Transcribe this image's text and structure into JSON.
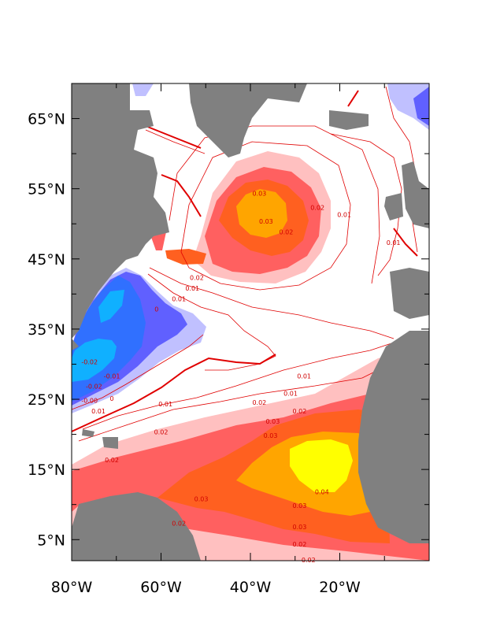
{
  "map": {
    "region": "North Atlantic",
    "lat_axis": {
      "range_deg": [
        2,
        70
      ],
      "ticks": [
        {
          "value": 5,
          "label": "5°N"
        },
        {
          "value": 15,
          "label": "15°N"
        },
        {
          "value": 25,
          "label": "25°N"
        },
        {
          "value": 35,
          "label": "35°N"
        },
        {
          "value": 45,
          "label": "45°N"
        },
        {
          "value": 55,
          "label": "55°N"
        },
        {
          "value": 65,
          "label": "65°N"
        }
      ]
    },
    "lon_axis": {
      "range_deg": [
        -80,
        0
      ],
      "ticks": [
        {
          "value": -80,
          "label": "80°W"
        },
        {
          "value": -60,
          "label": "60°W"
        },
        {
          "value": -40,
          "label": "40°W"
        },
        {
          "value": -20,
          "label": "20°W"
        }
      ]
    },
    "colors": {
      "land": "#808080",
      "ocean": "#ffffff",
      "pos_001": "#ffc0c0",
      "pos_002": "#ff6060",
      "pos_003": "#ff6020",
      "pos_004": "#ffa500",
      "pos_005": "#ffff00",
      "neg_001": "#c0c0ff",
      "neg_002": "#6060ff",
      "neg_003": "#3070ff",
      "neg_004": "#10b0ff",
      "contour_line": "#e00000"
    },
    "contour_labels": [
      {
        "text": "0.03",
        "lon": -38,
        "lat": 54
      },
      {
        "text": "0.03",
        "lon": -36.5,
        "lat": 50
      },
      {
        "text": "0.02",
        "lon": -32,
        "lat": 48.5
      },
      {
        "text": "0.02",
        "lon": -25,
        "lat": 52
      },
      {
        "text": "0.01",
        "lon": -19,
        "lat": 51
      },
      {
        "text": "0.01",
        "lon": -8,
        "lat": 47
      },
      {
        "text": "0.02",
        "lon": -52,
        "lat": 42
      },
      {
        "text": "0.01",
        "lon": -53,
        "lat": 40.5
      },
      {
        "text": "0.01",
        "lon": -56,
        "lat": 39
      },
      {
        "text": "0",
        "lon": -61,
        "lat": 37.5
      },
      {
        "text": "-0.02",
        "lon": -76,
        "lat": 30
      },
      {
        "text": "-0.02",
        "lon": -75,
        "lat": 26.5
      },
      {
        "text": "-0.01",
        "lon": -71,
        "lat": 28
      },
      {
        "text": "-0.00",
        "lon": -76,
        "lat": 24.5
      },
      {
        "text": "0",
        "lon": -71,
        "lat": 24.8
      },
      {
        "text": "0.01",
        "lon": -74,
        "lat": 23
      },
      {
        "text": "0.01",
        "lon": -59,
        "lat": 24
      },
      {
        "text": "0.01",
        "lon": -28,
        "lat": 28
      },
      {
        "text": "0.01",
        "lon": -31,
        "lat": 25.5
      },
      {
        "text": "0.02",
        "lon": -38,
        "lat": 24.2
      },
      {
        "text": "0.02",
        "lon": -29,
        "lat": 23
      },
      {
        "text": "0.03",
        "lon": -35,
        "lat": 21.5
      },
      {
        "text": "0.03",
        "lon": -35.5,
        "lat": 19.5
      },
      {
        "text": "0.02",
        "lon": -60,
        "lat": 20
      },
      {
        "text": "0.02",
        "lon": -71,
        "lat": 16
      },
      {
        "text": "0.03",
        "lon": -51,
        "lat": 10.5
      },
      {
        "text": "0.02",
        "lon": -56,
        "lat": 7
      },
      {
        "text": "0.03",
        "lon": -29,
        "lat": 9.5
      },
      {
        "text": "0.03",
        "lon": -29,
        "lat": 6.5
      },
      {
        "text": "0.04",
        "lon": -24,
        "lat": 11.5
      },
      {
        "text": "0.02",
        "lon": -29,
        "lat": 4
      },
      {
        "text": "0.02",
        "lon": -27,
        "lat": 1.8
      }
    ]
  }
}
